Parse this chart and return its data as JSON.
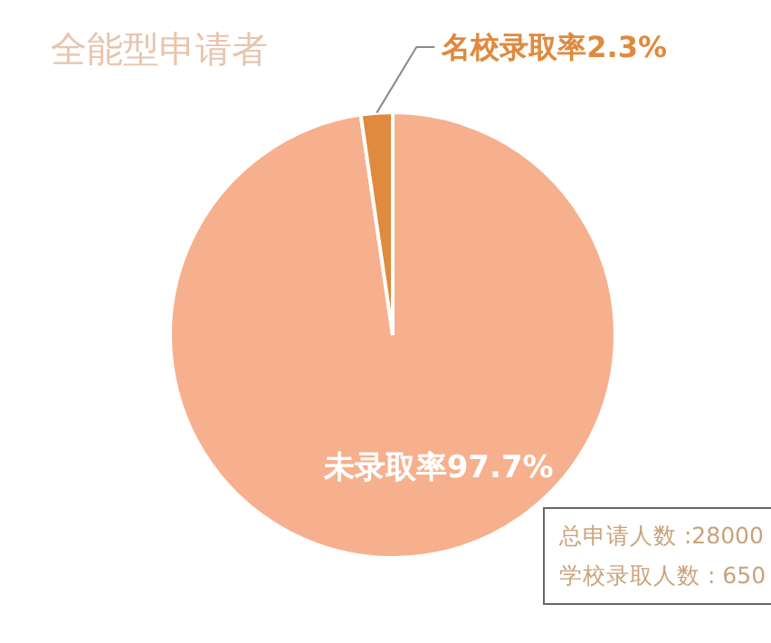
{
  "chart_data": {
    "type": "pie",
    "title": "全能型申请者",
    "categories": [
      "未录取率",
      "名校录取率"
    ],
    "values": [
      97.7,
      2.3
    ],
    "value_labels": [
      "97.7%",
      "2.3%"
    ],
    "colors": [
      "#f6b08e",
      "#df8a3e"
    ],
    "annotations": [
      "总申请人数 :28000",
      "学校录取人数 : 650"
    ],
    "legend": false
  }
}
